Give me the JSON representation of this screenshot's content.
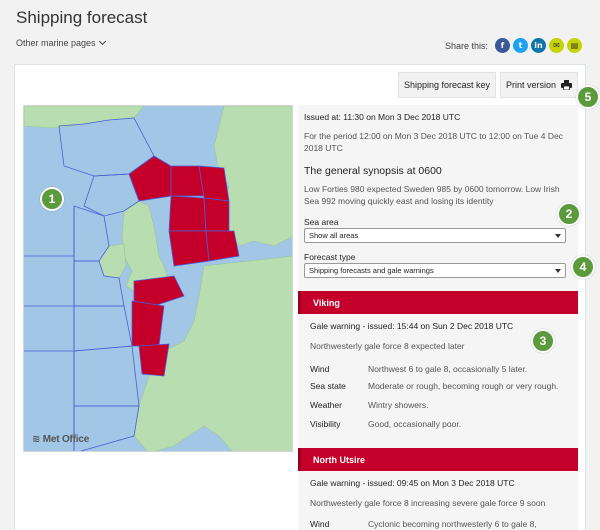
{
  "header": {
    "title": "Shipping forecast",
    "other_pages": "Other marine pages",
    "share_label": "Share this:",
    "share_buttons": [
      {
        "glyph": "f",
        "icon": "facebook-icon",
        "color": "#3b5998"
      },
      {
        "glyph": "t",
        "icon": "twitter-icon",
        "color": "#1da1f2"
      },
      {
        "glyph": "in",
        "icon": "linkedin-icon",
        "color": "#0e76a8"
      },
      {
        "glyph": "✉",
        "icon": "email-icon",
        "color": "#c7d300"
      },
      {
        "glyph": "▤",
        "icon": "document-icon",
        "color": "#c7d300"
      }
    ]
  },
  "toolbar": {
    "key_label": "Shipping forecast key",
    "print_label": "Print version"
  },
  "map": {
    "logo": "Met Office",
    "sea_color": "#a2c6e6",
    "land_color": "#b7ddb0",
    "warning_color": "#c4002a"
  },
  "badges": [
    "1",
    "2",
    "3",
    "4",
    "5"
  ],
  "panel": {
    "issued": "Issued at: 11:30 on Mon 3 Dec 2018 UTC",
    "period": "For the period 12:00 on Mon 3 Dec 2018 UTC to 12:00 on Tue 4 Dec 2018 UTC",
    "synopsis_title": "The general synopsis at 0600",
    "synopsis": "Low Forties 980 expected Sweden 985 by 0600 tomorrow. Low Irish Sea 992 moving quickly east and losing its identity",
    "sea_area_label": "Sea area",
    "sea_area_value": "Show all areas",
    "forecast_type_label": "Forecast type",
    "forecast_type_value": "Shipping forecasts and gale warnings"
  },
  "areas": [
    {
      "name": "Viking",
      "gale_issued": "Gale warning - issued: 15:44 on Sun 2 Dec 2018 UTC",
      "gale_text": "Northwesterly gale force 8 expected later",
      "rows": [
        {
          "k": "Wind",
          "v": "Northwest 6 to gale 8, occasionally 5 later."
        },
        {
          "k": "Sea state",
          "v": "Moderate or rough, becoming rough or very rough."
        },
        {
          "k": "Weather",
          "v": "Wintry showers."
        },
        {
          "k": "Visibility",
          "v": "Good, occasionally poor."
        }
      ]
    },
    {
      "name": "North Utsire",
      "gale_issued": "Gale warning - issued: 09:45 on Mon 3 Dec 2018 UTC",
      "gale_text": "Northwesterly gale force 8 increasing severe gale force 9 soon",
      "rows": [
        {
          "k": "Wind",
          "v": "Cyclonic becoming northwesterly 6 to gale 8,"
        }
      ]
    }
  ]
}
